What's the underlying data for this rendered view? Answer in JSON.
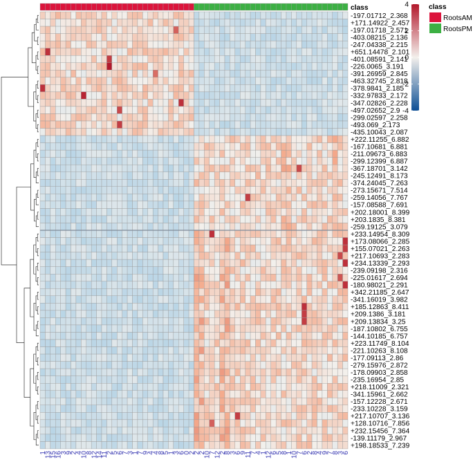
{
  "chart_data": {
    "type": "heatmap",
    "title": "",
    "annotation_title": "class",
    "legend_title": "class",
    "classes": [
      {
        "name": "RootsAM",
        "color": "#dc143c"
      },
      {
        "name": "RootsPM",
        "color": "#3cb043"
      }
    ],
    "colorbar": {
      "min": -4,
      "max": 4,
      "ticks": [
        "4",
        "2",
        "0",
        "-2",
        "-4"
      ],
      "tick_values": [
        4,
        2,
        0,
        -2,
        -4
      ],
      "low_color": "#0d4f95",
      "mid_color": "#f3f0ec",
      "high_color": "#b2182b"
    },
    "rows": [
      "-197.01712_2.368",
      "+171.14922_2.457",
      "-197.01718_2.571",
      "-403.08215_2.136",
      "-247.04338_2.215",
      "+651.14478_2.101",
      "-401.08591_2.141",
      "-226.0065_3.191",
      "-391.26959_2.845",
      "-463.32745_2.818",
      "-378.9841_2.185",
      "-332.97833_2.172",
      "-347.02826_2.228",
      "-497.02652_2.9",
      "-299.02597_2.258",
      "-493.069_2.173",
      "-435.10043_2.087",
      "+222.11255_6.882",
      "-167.10681_6.881",
      "-211.09673_6.883",
      "-299.12399_6.887",
      "-367.18701_3.142",
      "-245.12491_8.173",
      "-374.24045_7.263",
      "-273.15671_7.514",
      "-259.14056_7.767",
      "-157.08588_7.691",
      "+202.18001_8.399",
      "+203.1835_8.381",
      "-259.19125_3.079",
      "+233.14954_8.309",
      "+173.08066_2.285",
      "+155.07021_2.263",
      "+217.10693_2.283",
      "+234.13339_2.293",
      "-239.09198_2.316",
      "-225.01617_2.694",
      "-180.98021_2.291",
      "+342.21185_2.647",
      "-341.16019_3.982",
      "+185.12863_8.411",
      "+209.1386_3.181",
      "+209.13834_3.25",
      "-187.10802_6.755",
      "-144.10185_6.757",
      "+223.11749_8.104",
      "-221.10263_8.108",
      "-177.09113_2.86",
      "-279.15976_2.872",
      "-178.09903_2.858",
      "-235.16954_2.85",
      "+218.11009_2.321",
      "-341.15961_2.662",
      "-157.12228_2.671",
      "-233.10228_3.159",
      "+217.10707_3.136",
      "+128.10716_7.856",
      "+232.15456_7.364",
      "-139.11179_2.967",
      "+198.18533_7.239"
    ],
    "columns": [
      "1",
      "13",
      "15",
      "16",
      "3",
      "9",
      "2",
      "4",
      "10",
      "8",
      "12",
      "14",
      "11",
      "2",
      "5",
      "6",
      "7",
      "3",
      "1",
      "7",
      "9",
      "4",
      "4",
      "8",
      "5",
      "1",
      "3",
      "6",
      "0",
      "2",
      "2",
      "2",
      "10",
      "7",
      "12",
      "2",
      "8",
      "3",
      "6",
      "9",
      "11",
      "7",
      "4",
      "1",
      "12",
      "6",
      "5",
      "8",
      "1",
      "10",
      "7",
      "6",
      "2",
      "8",
      "4",
      "9",
      "7",
      "8",
      "3",
      "6"
    ],
    "column_classes": [
      "RootsAM",
      "RootsAM",
      "RootsAM",
      "RootsAM",
      "RootsAM",
      "RootsAM",
      "RootsAM",
      "RootsAM",
      "RootsAM",
      "RootsAM",
      "RootsAM",
      "RootsAM",
      "RootsAM",
      "RootsAM",
      "RootsAM",
      "RootsAM",
      "RootsAM",
      "RootsAM",
      "RootsAM",
      "RootsAM",
      "RootsAM",
      "RootsAM",
      "RootsAM",
      "RootsAM",
      "RootsAM",
      "RootsAM",
      "RootsAM",
      "RootsAM",
      "RootsAM",
      "RootsAM",
      "RootsPM",
      "RootsPM",
      "RootsPM",
      "RootsPM",
      "RootsPM",
      "RootsPM",
      "RootsPM",
      "RootsPM",
      "RootsPM",
      "RootsPM",
      "RootsPM",
      "RootsPM",
      "RootsPM",
      "RootsPM",
      "RootsPM",
      "RootsPM",
      "RootsPM",
      "RootsPM",
      "RootsPM",
      "RootsPM",
      "RootsPM",
      "RootsPM",
      "RootsPM",
      "RootsPM",
      "RootsPM",
      "RootsPM",
      "RootsPM",
      "RootsPM",
      "RootsPM",
      "RootsPM"
    ],
    "row_groups": [
      {
        "rows": [
          0,
          16
        ],
        "high_in": "RootsAM"
      },
      {
        "rows": [
          17,
          29
        ],
        "high_in": "RootsPM"
      },
      {
        "rows": [
          30,
          59
        ],
        "high_in": "RootsPM"
      }
    ],
    "highlight_cells": [
      [
        5,
        2,
        3.6
      ],
      [
        7,
        14,
        4.0
      ],
      [
        6,
        14,
        3.4
      ],
      [
        10,
        1,
        3.6
      ],
      [
        11,
        9,
        3.8
      ],
      [
        12,
        28,
        3.6
      ],
      [
        13,
        16,
        3.2
      ],
      [
        15,
        16,
        3.4
      ],
      [
        2,
        27,
        2.8
      ],
      [
        8,
        23,
        2.6
      ],
      [
        25,
        41,
        3.4
      ],
      [
        21,
        51,
        3.2
      ],
      [
        30,
        34,
        3.6
      ],
      [
        31,
        60,
        3.6
      ],
      [
        32,
        60,
        3.4
      ],
      [
        33,
        59,
        3.2
      ],
      [
        34,
        60,
        3.6
      ],
      [
        36,
        59,
        3.0
      ],
      [
        37,
        60,
        3.6
      ],
      [
        40,
        52,
        3.6
      ],
      [
        41,
        52,
        3.4
      ],
      [
        42,
        52,
        3.4
      ],
      [
        55,
        39,
        3.4
      ],
      [
        56,
        34,
        2.8
      ]
    ],
    "grid": true,
    "legend_placement": "top-right"
  }
}
